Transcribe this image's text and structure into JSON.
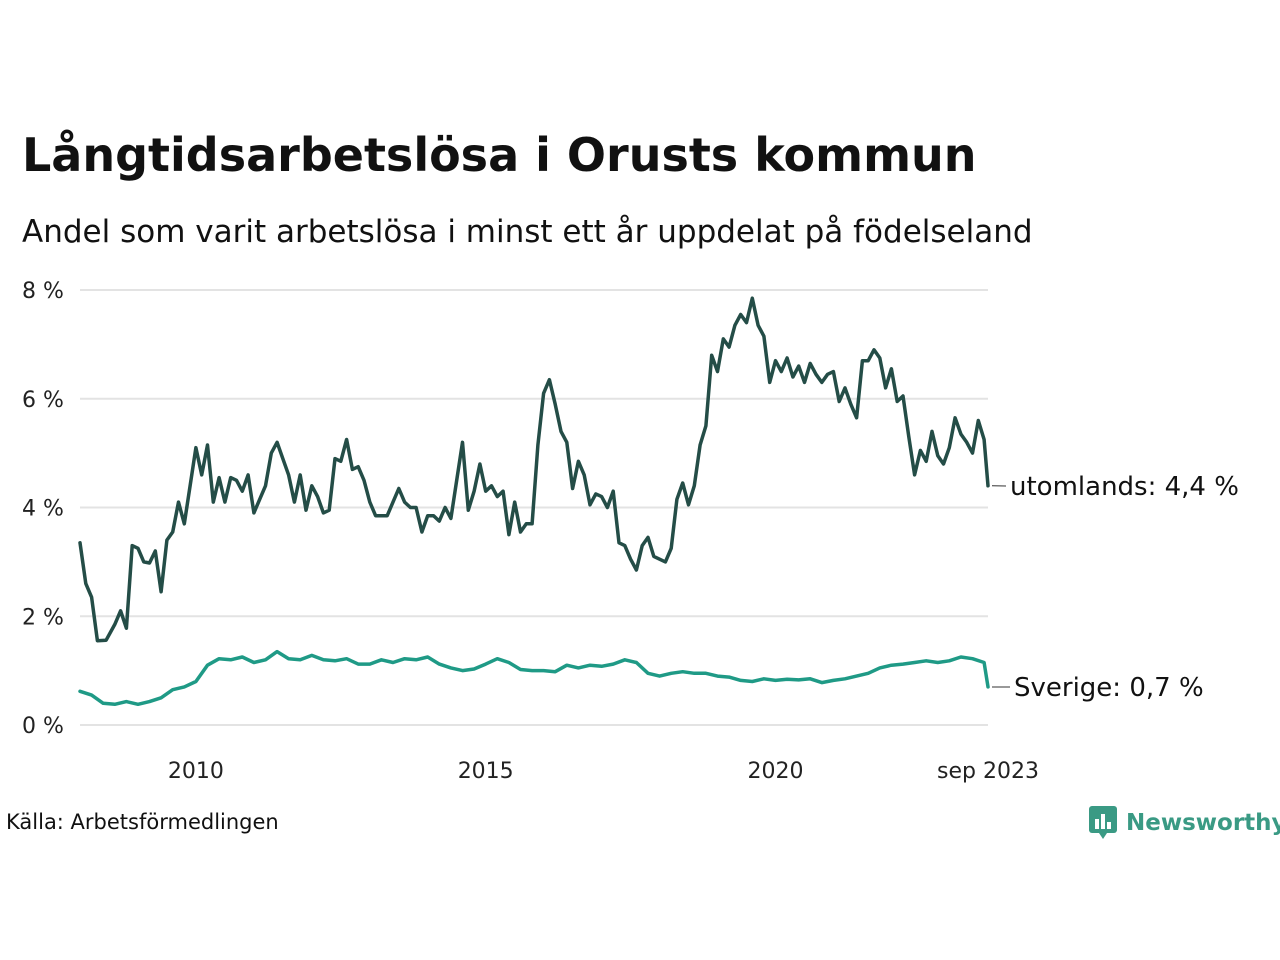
{
  "header": {
    "title": "Långtidsarbetslösa i Orusts kommun",
    "subtitle": "Andel som varit arbetslösa i minst ett år uppdelat på födelseland"
  },
  "footer": {
    "source": "Källa: Arbetsförmedlingen",
    "brand": "Newsworthy"
  },
  "colors": {
    "utomlands": "#244d47",
    "sverige": "#1f9a86",
    "grid": "#e3e3e3",
    "brand": "#3a9a84"
  },
  "chart_data": {
    "type": "line",
    "title": "Långtidsarbetslösa i Orusts kommun",
    "subtitle": "Andel som varit arbetslösa i minst ett år uppdelat på födelseland",
    "xlabel": "",
    "ylabel": "",
    "x_start": "2008-01",
    "x_end": "2023-09",
    "x_ticks": [
      {
        "label": "2010",
        "year": 2010
      },
      {
        "label": "2015",
        "year": 2015
      },
      {
        "label": "2020",
        "year": 2020
      },
      {
        "label": "sep 2023",
        "year": 2023.667
      }
    ],
    "y_ticks": [
      {
        "label": "0 %",
        "value": 0
      },
      {
        "label": "2 %",
        "value": 2
      },
      {
        "label": "4 %",
        "value": 4
      },
      {
        "label": "6 %",
        "value": 6
      },
      {
        "label": "8 %",
        "value": 8
      }
    ],
    "ylim": [
      0,
      8
    ],
    "grid": true,
    "series": [
      {
        "name": "utomlands",
        "end_label": "utomlands: 4,4 %",
        "points": [
          [
            2008.0,
            3.35
          ],
          [
            2008.1,
            2.6
          ],
          [
            2008.2,
            2.35
          ],
          [
            2008.3,
            1.55
          ],
          [
            2008.45,
            1.56
          ],
          [
            2008.6,
            1.85
          ],
          [
            2008.7,
            2.1
          ],
          [
            2008.8,
            1.78
          ],
          [
            2008.9,
            3.3
          ],
          [
            2009.0,
            3.25
          ],
          [
            2009.1,
            3.0
          ],
          [
            2009.2,
            2.98
          ],
          [
            2009.3,
            3.2
          ],
          [
            2009.4,
            2.45
          ],
          [
            2009.5,
            3.4
          ],
          [
            2009.6,
            3.55
          ],
          [
            2009.7,
            4.1
          ],
          [
            2009.8,
            3.7
          ],
          [
            2009.9,
            4.4
          ],
          [
            2010.0,
            5.1
          ],
          [
            2010.1,
            4.6
          ],
          [
            2010.2,
            5.15
          ],
          [
            2010.3,
            4.1
          ],
          [
            2010.4,
            4.55
          ],
          [
            2010.5,
            4.1
          ],
          [
            2010.6,
            4.55
          ],
          [
            2010.7,
            4.5
          ],
          [
            2010.8,
            4.3
          ],
          [
            2010.9,
            4.6
          ],
          [
            2011.0,
            3.9
          ],
          [
            2011.1,
            4.15
          ],
          [
            2011.2,
            4.4
          ],
          [
            2011.3,
            5.0
          ],
          [
            2011.4,
            5.2
          ],
          [
            2011.5,
            4.9
          ],
          [
            2011.6,
            4.6
          ],
          [
            2011.7,
            4.1
          ],
          [
            2011.8,
            4.6
          ],
          [
            2011.9,
            3.95
          ],
          [
            2012.0,
            4.4
          ],
          [
            2012.1,
            4.2
          ],
          [
            2012.2,
            3.9
          ],
          [
            2012.3,
            3.95
          ],
          [
            2012.4,
            4.9
          ],
          [
            2012.5,
            4.85
          ],
          [
            2012.6,
            5.25
          ],
          [
            2012.7,
            4.7
          ],
          [
            2012.8,
            4.75
          ],
          [
            2012.9,
            4.5
          ],
          [
            2013.0,
            4.1
          ],
          [
            2013.1,
            3.85
          ],
          [
            2013.2,
            3.85
          ],
          [
            2013.3,
            3.85
          ],
          [
            2013.4,
            4.1
          ],
          [
            2013.5,
            4.35
          ],
          [
            2013.6,
            4.1
          ],
          [
            2013.7,
            4.0
          ],
          [
            2013.8,
            4.0
          ],
          [
            2013.9,
            3.55
          ],
          [
            2014.0,
            3.85
          ],
          [
            2014.1,
            3.85
          ],
          [
            2014.2,
            3.75
          ],
          [
            2014.3,
            4.0
          ],
          [
            2014.4,
            3.8
          ],
          [
            2014.5,
            4.5
          ],
          [
            2014.6,
            5.2
          ],
          [
            2014.7,
            3.95
          ],
          [
            2014.8,
            4.3
          ],
          [
            2014.9,
            4.8
          ],
          [
            2015.0,
            4.3
          ],
          [
            2015.1,
            4.4
          ],
          [
            2015.2,
            4.2
          ],
          [
            2015.3,
            4.3
          ],
          [
            2015.4,
            3.5
          ],
          [
            2015.5,
            4.1
          ],
          [
            2015.6,
            3.55
          ],
          [
            2015.7,
            3.7
          ],
          [
            2015.8,
            3.7
          ],
          [
            2015.9,
            5.15
          ],
          [
            2016.0,
            6.1
          ],
          [
            2016.1,
            6.35
          ],
          [
            2016.2,
            5.9
          ],
          [
            2016.3,
            5.4
          ],
          [
            2016.4,
            5.2
          ],
          [
            2016.5,
            4.35
          ],
          [
            2016.6,
            4.85
          ],
          [
            2016.7,
            4.6
          ],
          [
            2016.8,
            4.05
          ],
          [
            2016.9,
            4.25
          ],
          [
            2017.0,
            4.2
          ],
          [
            2017.1,
            4.0
          ],
          [
            2017.2,
            4.3
          ],
          [
            2017.3,
            3.35
          ],
          [
            2017.4,
            3.3
          ],
          [
            2017.5,
            3.05
          ],
          [
            2017.6,
            2.85
          ],
          [
            2017.7,
            3.3
          ],
          [
            2017.8,
            3.45
          ],
          [
            2017.9,
            3.1
          ],
          [
            2018.0,
            3.05
          ],
          [
            2018.1,
            3.0
          ],
          [
            2018.2,
            3.25
          ],
          [
            2018.3,
            4.15
          ],
          [
            2018.4,
            4.45
          ],
          [
            2018.5,
            4.05
          ],
          [
            2018.6,
            4.4
          ],
          [
            2018.7,
            5.15
          ],
          [
            2018.8,
            5.5
          ],
          [
            2018.9,
            6.8
          ],
          [
            2019.0,
            6.5
          ],
          [
            2019.1,
            7.1
          ],
          [
            2019.2,
            6.95
          ],
          [
            2019.3,
            7.35
          ],
          [
            2019.4,
            7.55
          ],
          [
            2019.5,
            7.4
          ],
          [
            2019.6,
            7.85
          ],
          [
            2019.7,
            7.35
          ],
          [
            2019.8,
            7.15
          ],
          [
            2019.9,
            6.3
          ],
          [
            2020.0,
            6.7
          ],
          [
            2020.1,
            6.5
          ],
          [
            2020.2,
            6.75
          ],
          [
            2020.3,
            6.4
          ],
          [
            2020.4,
            6.6
          ],
          [
            2020.5,
            6.3
          ],
          [
            2020.6,
            6.65
          ],
          [
            2020.7,
            6.45
          ],
          [
            2020.8,
            6.3
          ],
          [
            2020.9,
            6.45
          ],
          [
            2021.0,
            6.5
          ],
          [
            2021.1,
            5.95
          ],
          [
            2021.2,
            6.2
          ],
          [
            2021.3,
            5.9
          ],
          [
            2021.4,
            5.65
          ],
          [
            2021.5,
            6.7
          ],
          [
            2021.6,
            6.7
          ],
          [
            2021.7,
            6.9
          ],
          [
            2021.8,
            6.75
          ],
          [
            2021.9,
            6.2
          ],
          [
            2022.0,
            6.55
          ],
          [
            2022.1,
            5.95
          ],
          [
            2022.2,
            6.05
          ],
          [
            2022.3,
            5.3
          ],
          [
            2022.4,
            4.6
          ],
          [
            2022.5,
            5.05
          ],
          [
            2022.6,
            4.85
          ],
          [
            2022.7,
            5.4
          ],
          [
            2022.8,
            4.95
          ],
          [
            2022.9,
            4.8
          ],
          [
            2023.0,
            5.1
          ],
          [
            2023.1,
            5.65
          ],
          [
            2023.2,
            5.35
          ],
          [
            2023.3,
            5.2
          ],
          [
            2023.4,
            5.0
          ],
          [
            2023.5,
            5.6
          ],
          [
            2023.6,
            5.25
          ],
          [
            2023.667,
            4.4
          ]
        ]
      },
      {
        "name": "Sverige",
        "end_label": "Sverige: 0,7 %",
        "points": [
          [
            2008.0,
            0.62
          ],
          [
            2008.2,
            0.55
          ],
          [
            2008.4,
            0.4
          ],
          [
            2008.6,
            0.38
          ],
          [
            2008.8,
            0.43
          ],
          [
            2009.0,
            0.38
          ],
          [
            2009.2,
            0.43
          ],
          [
            2009.4,
            0.5
          ],
          [
            2009.6,
            0.65
          ],
          [
            2009.8,
            0.7
          ],
          [
            2010.0,
            0.8
          ],
          [
            2010.2,
            1.1
          ],
          [
            2010.4,
            1.22
          ],
          [
            2010.6,
            1.2
          ],
          [
            2010.8,
            1.25
          ],
          [
            2011.0,
            1.15
          ],
          [
            2011.2,
            1.2
          ],
          [
            2011.4,
            1.35
          ],
          [
            2011.6,
            1.22
          ],
          [
            2011.8,
            1.2
          ],
          [
            2012.0,
            1.28
          ],
          [
            2012.2,
            1.2
          ],
          [
            2012.4,
            1.18
          ],
          [
            2012.6,
            1.22
          ],
          [
            2012.8,
            1.12
          ],
          [
            2013.0,
            1.12
          ],
          [
            2013.2,
            1.2
          ],
          [
            2013.4,
            1.15
          ],
          [
            2013.6,
            1.22
          ],
          [
            2013.8,
            1.2
          ],
          [
            2014.0,
            1.25
          ],
          [
            2014.2,
            1.12
          ],
          [
            2014.4,
            1.05
          ],
          [
            2014.6,
            1.0
          ],
          [
            2014.8,
            1.03
          ],
          [
            2015.0,
            1.12
          ],
          [
            2015.2,
            1.22
          ],
          [
            2015.4,
            1.15
          ],
          [
            2015.6,
            1.02
          ],
          [
            2015.8,
            1.0
          ],
          [
            2016.0,
            1.0
          ],
          [
            2016.2,
            0.98
          ],
          [
            2016.4,
            1.1
          ],
          [
            2016.6,
            1.05
          ],
          [
            2016.8,
            1.1
          ],
          [
            2017.0,
            1.08
          ],
          [
            2017.2,
            1.12
          ],
          [
            2017.4,
            1.2
          ],
          [
            2017.6,
            1.15
          ],
          [
            2017.8,
            0.95
          ],
          [
            2018.0,
            0.9
          ],
          [
            2018.2,
            0.95
          ],
          [
            2018.4,
            0.98
          ],
          [
            2018.6,
            0.95
          ],
          [
            2018.8,
            0.95
          ],
          [
            2019.0,
            0.9
          ],
          [
            2019.2,
            0.88
          ],
          [
            2019.4,
            0.82
          ],
          [
            2019.6,
            0.8
          ],
          [
            2019.8,
            0.85
          ],
          [
            2020.0,
            0.82
          ],
          [
            2020.2,
            0.84
          ],
          [
            2020.4,
            0.83
          ],
          [
            2020.6,
            0.85
          ],
          [
            2020.8,
            0.78
          ],
          [
            2021.0,
            0.82
          ],
          [
            2021.2,
            0.85
          ],
          [
            2021.4,
            0.9
          ],
          [
            2021.6,
            0.95
          ],
          [
            2021.8,
            1.05
          ],
          [
            2022.0,
            1.1
          ],
          [
            2022.2,
            1.12
          ],
          [
            2022.4,
            1.15
          ],
          [
            2022.6,
            1.18
          ],
          [
            2022.8,
            1.15
          ],
          [
            2023.0,
            1.18
          ],
          [
            2023.2,
            1.25
          ],
          [
            2023.4,
            1.22
          ],
          [
            2023.6,
            1.15
          ],
          [
            2023.667,
            0.7
          ]
        ]
      }
    ]
  }
}
